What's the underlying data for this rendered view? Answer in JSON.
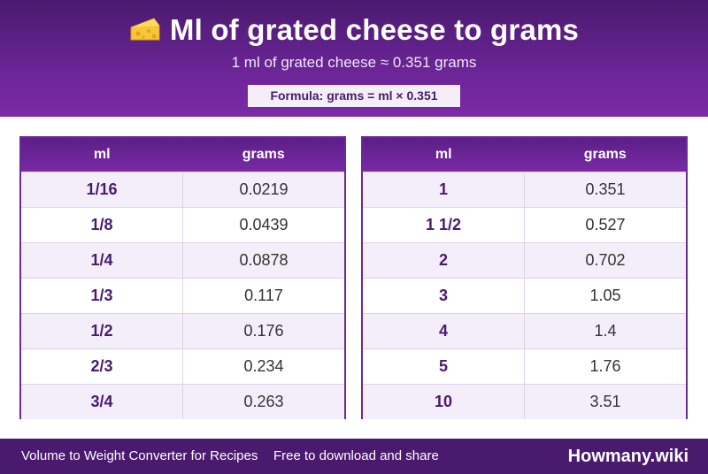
{
  "header": {
    "title": "Ml of grated cheese to grams",
    "subtitle": "1 ml of grated cheese ≈ 0.351 grams",
    "formula": "Formula: grams = ml × 0.351",
    "title_icon": "cheese-icon"
  },
  "tables": [
    {
      "columns": [
        "ml",
        "grams"
      ],
      "rows": [
        [
          "1/16",
          "0.0219"
        ],
        [
          "1/8",
          "0.0439"
        ],
        [
          "1/4",
          "0.0878"
        ],
        [
          "1/3",
          "0.117"
        ],
        [
          "1/2",
          "0.176"
        ],
        [
          "2/3",
          "0.234"
        ],
        [
          "3/4",
          "0.263"
        ]
      ]
    },
    {
      "columns": [
        "ml",
        "grams"
      ],
      "rows": [
        [
          "1",
          "0.351"
        ],
        [
          "1 1/2",
          "0.527"
        ],
        [
          "2",
          "0.702"
        ],
        [
          "3",
          "1.05"
        ],
        [
          "4",
          "1.4"
        ],
        [
          "5",
          "1.76"
        ],
        [
          "10",
          "3.51"
        ]
      ]
    }
  ],
  "footer": {
    "left_text": "Volume to Weight Converter for Recipes",
    "middle_text": "Free to download and share",
    "brand": "Howmany.wiki"
  },
  "colors": {
    "primary": "#4a1a6e",
    "accent": "#7a2aa6",
    "row_alt": "#f3eefa"
  }
}
